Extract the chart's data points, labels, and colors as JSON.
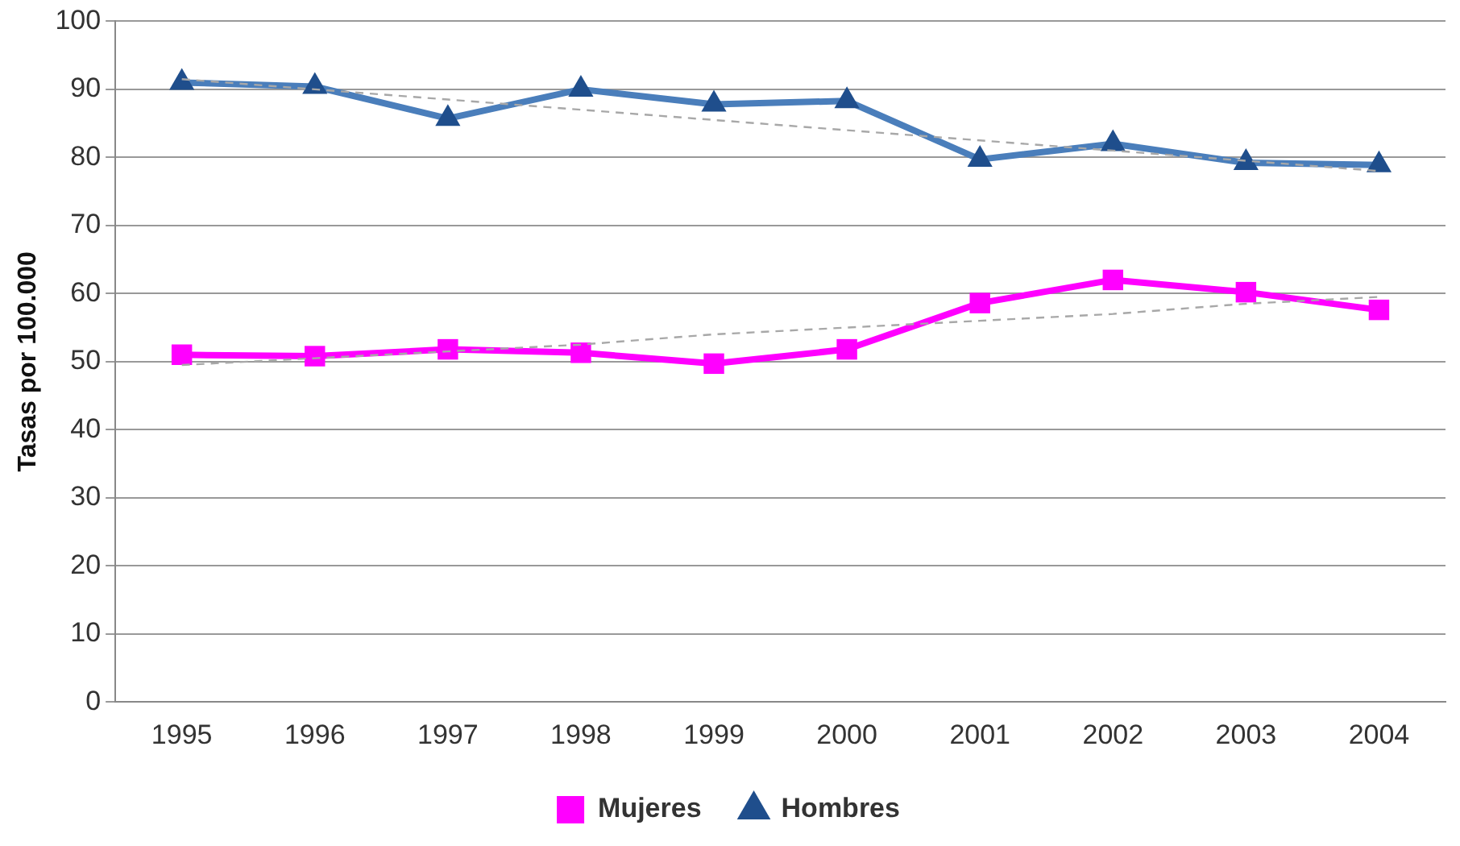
{
  "chart_data": {
    "type": "line",
    "ylabel": "Tasas por 100.000",
    "categories": [
      "1995",
      "1996",
      "1997",
      "1998",
      "1999",
      "2000",
      "2001",
      "2002",
      "2003",
      "2004"
    ],
    "series": [
      {
        "name": "Mujeres",
        "color": "#ff00ff",
        "marker": "square",
        "values": [
          51,
          50.8,
          51.8,
          51.3,
          49.7,
          51.8,
          58.6,
          62,
          60.2,
          57.6
        ]
      },
      {
        "name": "Hombres",
        "color": "#4a7ebb",
        "marker": "triangle",
        "values": [
          91,
          90.4,
          85.7,
          90,
          87.8,
          88.3,
          79.7,
          82,
          79.2,
          78.9
        ]
      },
      {
        "type": "line",
        "color": "#a8a8a8",
        "line_style": "dashed",
        "marker": "none",
        "values": [
          49.5,
          50.5,
          51.5,
          52.5,
          54,
          55,
          56,
          57,
          58.5,
          59.5
        ]
      },
      {
        "type": "line",
        "color": "#a8a8a8",
        "line_style": "dashed",
        "marker": "none",
        "values": [
          91.5,
          90,
          88.5,
          87,
          85.5,
          84,
          82.5,
          81,
          79.5,
          78
        ]
      }
    ],
    "ylim": [
      0,
      100
    ],
    "yticks": [
      0,
      10,
      20,
      30,
      40,
      50,
      60,
      70,
      80,
      90,
      100
    ],
    "grid": "y",
    "legend": "bottom"
  }
}
